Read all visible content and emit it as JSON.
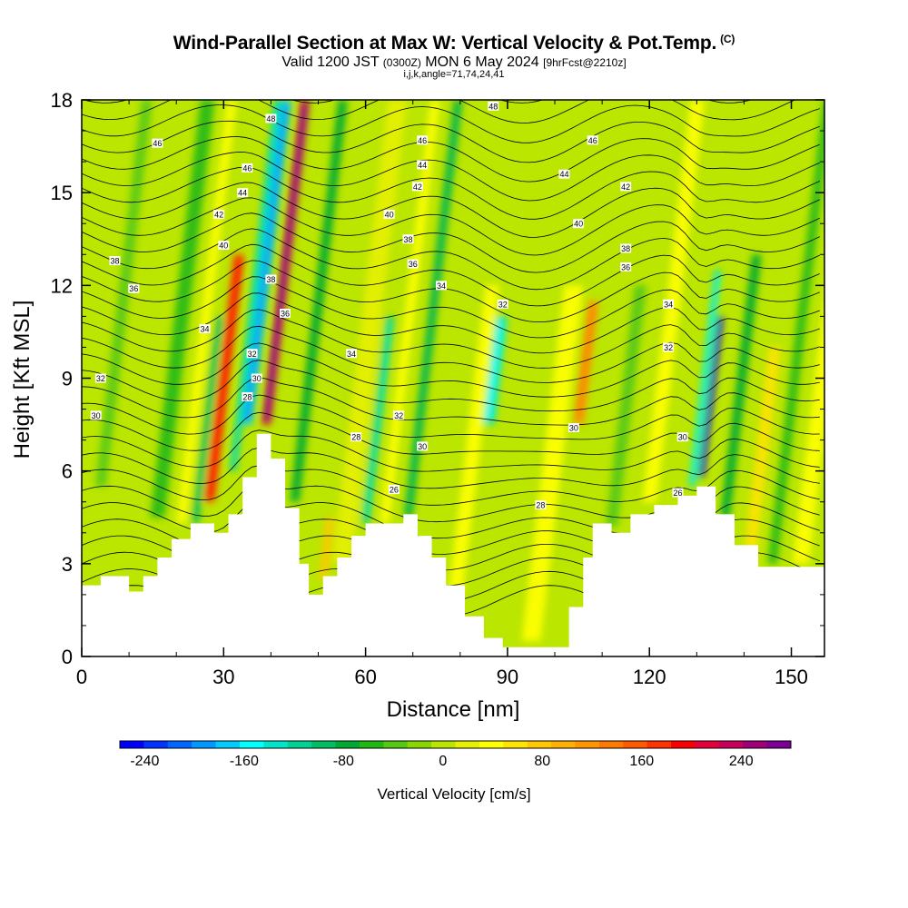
{
  "title": {
    "main": "Wind-Parallel Section at Max W: Vertical Velocity & Pot.Temp.",
    "mark": "(C)",
    "valid_prefix": "Valid 1200 JST",
    "valid_zulu": "(0300Z)",
    "valid_date": "MON 6 May 2024",
    "forecast": "[9hrFcst@2210z]",
    "indices": "i,j,k,angle=71,74,24,41"
  },
  "chart_data": {
    "type": "heatmap",
    "xlabel": "Distance [nm]",
    "ylabel": "Height [Kft MSL]",
    "xlim": [
      0,
      157
    ],
    "ylim": [
      0,
      18
    ],
    "x_ticks": [
      0,
      30,
      60,
      90,
      120,
      150
    ],
    "y_ticks": [
      0,
      3,
      6,
      9,
      12,
      15,
      18
    ],
    "colorbar": {
      "label": "Vertical Velocity [cm/s]",
      "ticks": [
        -240,
        -160,
        -80,
        0,
        80,
        160,
        240
      ],
      "min": -260,
      "max": 280,
      "colors": [
        "#0000ff",
        "#0033ff",
        "#0066ff",
        "#0099ff",
        "#00ccff",
        "#00ffff",
        "#00e6cc",
        "#00d296",
        "#00be64",
        "#00aa32",
        "#22b814",
        "#55c814",
        "#88d800",
        "#bbe600",
        "#e6f000",
        "#ffff00",
        "#ffe400",
        "#ffc800",
        "#ffb000",
        "#ff9600",
        "#ff7800",
        "#ff5a00",
        "#ff3200",
        "#ff0000",
        "#e6003c",
        "#c8005a",
        "#a00078",
        "#7d0096"
      ]
    },
    "terrain_kft": [
      {
        "x": 0,
        "y": 2.3
      },
      {
        "x": 4,
        "y": 2.6
      },
      {
        "x": 8,
        "y": 2.6
      },
      {
        "x": 10,
        "y": 2.1
      },
      {
        "x": 13,
        "y": 2.6
      },
      {
        "x": 16,
        "y": 3.2
      },
      {
        "x": 19,
        "y": 3.8
      },
      {
        "x": 23,
        "y": 4.3
      },
      {
        "x": 26,
        "y": 4.3
      },
      {
        "x": 28,
        "y": 4.0
      },
      {
        "x": 31,
        "y": 4.6
      },
      {
        "x": 34,
        "y": 5.8
      },
      {
        "x": 37,
        "y": 7.2
      },
      {
        "x": 40,
        "y": 6.4
      },
      {
        "x": 43,
        "y": 4.8
      },
      {
        "x": 46,
        "y": 3.0
      },
      {
        "x": 48,
        "y": 2.0
      },
      {
        "x": 51,
        "y": 2.6
      },
      {
        "x": 54,
        "y": 3.2
      },
      {
        "x": 57,
        "y": 3.9
      },
      {
        "x": 60,
        "y": 4.3
      },
      {
        "x": 64,
        "y": 4.3
      },
      {
        "x": 68,
        "y": 4.6
      },
      {
        "x": 71,
        "y": 3.9
      },
      {
        "x": 74,
        "y": 3.2
      },
      {
        "x": 77,
        "y": 2.3
      },
      {
        "x": 81,
        "y": 1.3
      },
      {
        "x": 85,
        "y": 0.6
      },
      {
        "x": 89,
        "y": 0.3
      },
      {
        "x": 94,
        "y": 0.3
      },
      {
        "x": 99,
        "y": 0.3
      },
      {
        "x": 103,
        "y": 1.6
      },
      {
        "x": 106,
        "y": 3.2
      },
      {
        "x": 108,
        "y": 4.3
      },
      {
        "x": 112,
        "y": 4.0
      },
      {
        "x": 116,
        "y": 4.6
      },
      {
        "x": 121,
        "y": 4.9
      },
      {
        "x": 126,
        "y": 5.2
      },
      {
        "x": 130,
        "y": 5.5
      },
      {
        "x": 134,
        "y": 4.6
      },
      {
        "x": 138,
        "y": 3.6
      },
      {
        "x": 143,
        "y": 2.9
      },
      {
        "x": 150,
        "y": 2.9
      },
      {
        "x": 157,
        "y": 2.6
      }
    ],
    "background_w": -6,
    "updrafts_downdrafts": [
      {
        "x": 4,
        "y0": 5.5,
        "y1": 18,
        "w": -30,
        "width": 2.2
      },
      {
        "x": 16,
        "y0": 4.5,
        "y1": 18,
        "w": -55,
        "width": 3.0
      },
      {
        "x": 21,
        "y0": 4.3,
        "y1": 18,
        "w": 45,
        "width": 2.0
      },
      {
        "x": 27,
        "y0": 5.0,
        "y1": 13,
        "w": 170,
        "width": 2.2
      },
      {
        "x": 24,
        "y0": 4.3,
        "y1": 11,
        "w": -90,
        "width": 1.5
      },
      {
        "x": 32,
        "y0": 6.0,
        "y1": 18,
        "w": -110,
        "width": 1.5
      },
      {
        "x": 35,
        "y0": 7.5,
        "y1": 18,
        "w": -170,
        "width": 2.2
      },
      {
        "x": 39,
        "y0": 7.5,
        "y1": 18,
        "w": 230,
        "width": 1.9
      },
      {
        "x": 45,
        "y0": 5.0,
        "y1": 18,
        "w": -70,
        "width": 2.0
      },
      {
        "x": 51,
        "y0": 2.5,
        "y1": 4.5,
        "w": 70,
        "width": 1.7
      },
      {
        "x": 55,
        "y0": 3.0,
        "y1": 18,
        "w": 25,
        "width": 4.0
      },
      {
        "x": 60,
        "y0": 4.3,
        "y1": 11,
        "w": -120,
        "width": 1.6
      },
      {
        "x": 64,
        "y0": 4.3,
        "y1": 18,
        "w": 40,
        "width": 2.0
      },
      {
        "x": 69,
        "y0": 4.5,
        "y1": 18,
        "w": -80,
        "width": 1.8
      },
      {
        "x": 79,
        "y0": 2.0,
        "y1": 12,
        "w": 35,
        "width": 3.0
      },
      {
        "x": 86,
        "y0": 7.5,
        "y1": 11,
        "w": -130,
        "width": 2.5
      },
      {
        "x": 95,
        "y0": 0.5,
        "y1": 12,
        "w": 30,
        "width": 4.0
      },
      {
        "x": 105,
        "y0": 7.5,
        "y1": 11.5,
        "w": 110,
        "width": 2.2
      },
      {
        "x": 112,
        "y0": 4.2,
        "y1": 12,
        "w": -40,
        "width": 2.5
      },
      {
        "x": 120,
        "y0": 5.0,
        "y1": 18,
        "w": 35,
        "width": 3.0
      },
      {
        "x": 129,
        "y0": 5.5,
        "y1": 12.5,
        "w": -130,
        "width": 1.4
      },
      {
        "x": 131,
        "y0": 5.8,
        "y1": 11,
        "w": -250,
        "width": 1.1
      },
      {
        "x": 136,
        "y0": 4.5,
        "y1": 13,
        "w": -70,
        "width": 2.0
      },
      {
        "x": 141,
        "y0": 3.0,
        "y1": 10,
        "w": 60,
        "width": 2.5
      },
      {
        "x": 146,
        "y0": 3.0,
        "y1": 18,
        "w": -50,
        "width": 2.0
      },
      {
        "x": 152,
        "y0": 3.0,
        "y1": 18,
        "w": 30,
        "width": 3.5
      }
    ],
    "theta_contours": {
      "levels_C": [
        26,
        28,
        30,
        32,
        34,
        36,
        38,
        40,
        42,
        44,
        46,
        48
      ],
      "labels": [
        {
          "text": "30",
          "x": 3,
          "y": 7.8
        },
        {
          "text": "32",
          "x": 4,
          "y": 9.0
        },
        {
          "text": "36",
          "x": 11,
          "y": 11.9
        },
        {
          "text": "38",
          "x": 7,
          "y": 12.8
        },
        {
          "text": "46",
          "x": 16,
          "y": 16.6
        },
        {
          "text": "34",
          "x": 26,
          "y": 10.6
        },
        {
          "text": "40",
          "x": 30,
          "y": 13.3
        },
        {
          "text": "42",
          "x": 29,
          "y": 14.3
        },
        {
          "text": "44",
          "x": 34,
          "y": 15.0
        },
        {
          "text": "46",
          "x": 35,
          "y": 15.8
        },
        {
          "text": "48",
          "x": 40,
          "y": 17.4
        },
        {
          "text": "38",
          "x": 40,
          "y": 12.2
        },
        {
          "text": "36",
          "x": 43,
          "y": 11.1
        },
        {
          "text": "32",
          "x": 36,
          "y": 9.8
        },
        {
          "text": "30",
          "x": 37,
          "y": 9.0
        },
        {
          "text": "28",
          "x": 35,
          "y": 8.4
        },
        {
          "text": "34",
          "x": 57,
          "y": 9.8
        },
        {
          "text": "28",
          "x": 58,
          "y": 7.1
        },
        {
          "text": "26",
          "x": 66,
          "y": 5.4
        },
        {
          "text": "32",
          "x": 67,
          "y": 7.8
        },
        {
          "text": "30",
          "x": 72,
          "y": 6.8
        },
        {
          "text": "36",
          "x": 70,
          "y": 12.7
        },
        {
          "text": "38",
          "x": 69,
          "y": 13.5
        },
        {
          "text": "40",
          "x": 65,
          "y": 14.3
        },
        {
          "text": "42",
          "x": 71,
          "y": 15.2
        },
        {
          "text": "44",
          "x": 72,
          "y": 15.9
        },
        {
          "text": "46",
          "x": 72,
          "y": 16.7
        },
        {
          "text": "48",
          "x": 87,
          "y": 17.8
        },
        {
          "text": "34",
          "x": 76,
          "y": 12.0
        },
        {
          "text": "32",
          "x": 89,
          "y": 11.4
        },
        {
          "text": "28",
          "x": 97,
          "y": 4.9
        },
        {
          "text": "30",
          "x": 104,
          "y": 7.4
        },
        {
          "text": "44",
          "x": 102,
          "y": 15.6
        },
        {
          "text": "46",
          "x": 108,
          "y": 16.7
        },
        {
          "text": "40",
          "x": 105,
          "y": 14.0
        },
        {
          "text": "42",
          "x": 115,
          "y": 15.2
        },
        {
          "text": "38",
          "x": 115,
          "y": 13.2
        },
        {
          "text": "36",
          "x": 115,
          "y": 12.6
        },
        {
          "text": "34",
          "x": 124,
          "y": 11.4
        },
        {
          "text": "32",
          "x": 124,
          "y": 10.0
        },
        {
          "text": "30",
          "x": 127,
          "y": 7.1
        },
        {
          "text": "26",
          "x": 126,
          "y": 5.3
        }
      ]
    }
  }
}
